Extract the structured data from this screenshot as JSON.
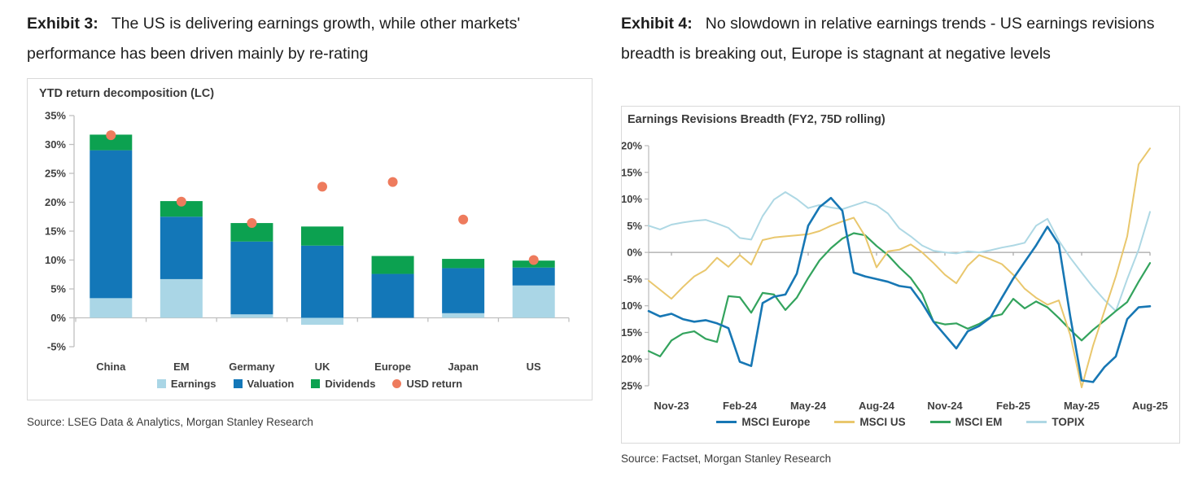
{
  "exhibit3": {
    "label": "Exhibit 3:",
    "title": "The US is delivering earnings growth, while other markets' performance has been driven mainly by re-rating",
    "source": "Source: LSEG Data & Analytics, Morgan Stanley Research"
  },
  "exhibit4": {
    "label": "Exhibit 4:",
    "title": "No slowdown in relative earnings trends - US earnings revisions breadth is breaking out, Europe is stagnant at negative levels",
    "source": "Source: Factset, Morgan Stanley Research"
  },
  "chart_data": [
    {
      "type": "bar",
      "title": "YTD return decomposition (LC)",
      "stacked": true,
      "grid": false,
      "legend_position": "bottom",
      "categories": [
        "China",
        "EM",
        "Germany",
        "UK",
        "Europe",
        "Japan",
        "US"
      ],
      "series": [
        {
          "name": "Earnings",
          "color": "#aad6e6",
          "values": [
            3.4,
            6.7,
            0.6,
            -1.2,
            0.0,
            0.8,
            5.6
          ]
        },
        {
          "name": "Valuation",
          "color": "#1377b8",
          "values": [
            25.6,
            10.8,
            12.6,
            12.5,
            7.6,
            7.8,
            3.1
          ]
        },
        {
          "name": "Dividends",
          "color": "#0ca150",
          "values": [
            2.7,
            2.7,
            3.2,
            3.3,
            3.1,
            1.6,
            1.2
          ]
        }
      ],
      "dot_series": {
        "name": "USD return",
        "color": "#ee7b5d",
        "values": [
          31.6,
          20.1,
          16.4,
          22.7,
          23.5,
          17.0,
          10.0
        ]
      },
      "ylim": [
        -5,
        35
      ],
      "ytick_step": 5,
      "ylabel_suffix": "%"
    },
    {
      "type": "line",
      "title": "Earnings Revisions Breadth (FY2, 75D rolling)",
      "x_start": "Oct-23",
      "x_end": "Aug-25",
      "points_per_month": 2,
      "x_tick_labels": [
        "Nov-23",
        "Feb-24",
        "May-24",
        "Aug-24",
        "Nov-24",
        "Feb-25",
        "May-25",
        "Aug-25"
      ],
      "x_tick_indices": [
        2,
        8,
        14,
        20,
        26,
        32,
        38,
        44
      ],
      "ylim": [
        -25,
        20
      ],
      "ytick_step": 5,
      "ylabel_suffix": "%",
      "zero_axis": true,
      "legend_position": "bottom",
      "series": [
        {
          "name": "MSCI Europe",
          "color": "#1777b4",
          "width": 2.6,
          "values": [
            -11,
            -12,
            -11.5,
            -12.5,
            -13,
            -12.7,
            -13.3,
            -14.2,
            -20.5,
            -21.3,
            -9.5,
            -8.3,
            -7.9,
            -4,
            5,
            8.5,
            10.2,
            7.8,
            -3.8,
            -4.5,
            -5,
            -5.5,
            -6.3,
            -6.6,
            -9.5,
            -13,
            -15.5,
            -18,
            -14.8,
            -13.8,
            -12.2,
            -8.5,
            -4.9,
            -1.8,
            1.3,
            4.8,
            1.5,
            -12,
            -24,
            -24.3,
            -21.5,
            -19.5,
            -12.5,
            -10.3,
            -10.1
          ]
        },
        {
          "name": "MSCI US",
          "color": "#e9c76d",
          "width": 2,
          "values": [
            -5.3,
            -7,
            -8.7,
            -6.5,
            -4.5,
            -3.3,
            -1,
            -2.7,
            -0.5,
            -2.3,
            2.3,
            2.8,
            3,
            3.2,
            3.4,
            4,
            5,
            5.8,
            6.5,
            3,
            -2.8,
            0.2,
            0.5,
            1.5,
            0,
            -2,
            -4.2,
            -5.8,
            -2.5,
            -0.5,
            -1.3,
            -2.2,
            -4.2,
            -6.8,
            -8.5,
            -9.8,
            -9,
            -15.5,
            -25.3,
            -17.5,
            -11,
            -4.5,
            3,
            16.5,
            19.5
          ]
        },
        {
          "name": "MSCI EM",
          "color": "#33a35d",
          "width": 2.2,
          "values": [
            -18.5,
            -19.5,
            -16.5,
            -15.2,
            -14.8,
            -16.2,
            -16.8,
            -8.2,
            -8.4,
            -11.3,
            -7.6,
            -7.9,
            -10.8,
            -8.5,
            -4.8,
            -1.5,
            0.8,
            2.6,
            3.6,
            3.2,
            1.2,
            -0.5,
            -2.8,
            -4.8,
            -7.8,
            -13,
            -13.5,
            -13.3,
            -14.3,
            -13.4,
            -12.1,
            -11.6,
            -8.7,
            -10.5,
            -9.2,
            -10.3,
            -12.3,
            -14.5,
            -16.5,
            -14.5,
            -12.8,
            -11,
            -9.3,
            -5.5,
            -2
          ]
        },
        {
          "name": "TOPIX",
          "color": "#aed8e4",
          "width": 2,
          "values": [
            5,
            4.3,
            5.2,
            5.6,
            5.9,
            6.1,
            5.4,
            4.6,
            2.7,
            2.4,
            6.8,
            9.9,
            11.3,
            10,
            8.3,
            8.9,
            8.4,
            8.1,
            8.8,
            9.5,
            8.8,
            7.3,
            4.5,
            3,
            1.3,
            0.3,
            0,
            -0.2,
            0.2,
            0,
            0.4,
            0.9,
            1.3,
            1.8,
            5,
            6.3,
            2.2,
            -1,
            -3.8,
            -6.5,
            -8.9,
            -11,
            -5,
            0.5,
            7.6
          ]
        }
      ]
    }
  ]
}
